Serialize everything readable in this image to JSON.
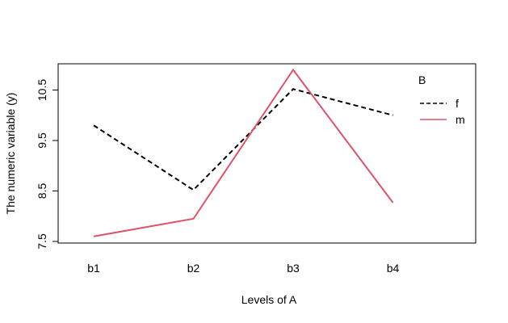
{
  "chart_data": {
    "type": "line",
    "title": "",
    "xlabel": "Levels of A",
    "ylabel": "The numeric variable (y)",
    "categories": [
      "b1",
      "b2",
      "b3",
      "b4"
    ],
    "ylim": [
      7.5,
      11.0
    ],
    "yticks": [
      7.5,
      8.5,
      9.5,
      10.5
    ],
    "grid": false,
    "legend": {
      "title": "B",
      "placement": "top-right"
    },
    "series": [
      {
        "name": "f",
        "values": [
          9.8,
          8.52,
          10.52,
          10.0
        ],
        "color": "#000000",
        "style": "dashed"
      },
      {
        "name": "m",
        "values": [
          7.6,
          7.95,
          10.9,
          8.27
        ],
        "color": "#DF536B",
        "style": "solid"
      }
    ]
  }
}
